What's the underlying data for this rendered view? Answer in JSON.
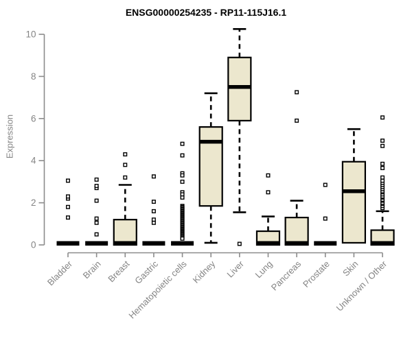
{
  "title": "ENSG00000254235 - RP11-115J16.1",
  "chart_data": {
    "type": "boxplot",
    "title": "ENSG00000254235 - RP11-115J16.1",
    "xlabel": "",
    "ylabel": "Expression",
    "ylim": [
      0,
      10.4
    ],
    "yticks": [
      0,
      2,
      4,
      6,
      8,
      10
    ],
    "grid": false,
    "legend": "none",
    "categories": [
      "Bladder",
      "Brain",
      "Breast",
      "Gastric",
      "Hematopoietic cells",
      "Kidney",
      "Liver",
      "Lung",
      "Pancreas",
      "Prostate",
      "Skin",
      "Unknown / Other"
    ],
    "series": [
      {
        "id": "bladder",
        "label": "Bladder",
        "low": 0,
        "q1": 0,
        "median": 0,
        "q3": 0,
        "high": 0,
        "outliers": [
          1.3,
          1.8,
          2.2,
          2.3,
          3.05
        ]
      },
      {
        "id": "brain",
        "label": "Brain",
        "low": 0,
        "q1": 0,
        "median": 0,
        "q3": 0,
        "high": 0,
        "outliers": [
          0.5,
          1.05,
          1.25,
          2.1,
          2.7,
          2.8,
          3.1
        ]
      },
      {
        "id": "breast",
        "label": "Breast",
        "low": 0,
        "q1": 0,
        "median": 0,
        "q3": 1.2,
        "high": 2.85,
        "outliers": [
          3.2,
          3.8,
          4.3
        ]
      },
      {
        "id": "gastric",
        "label": "Gastric",
        "low": 0,
        "q1": 0,
        "median": 0,
        "q3": 0,
        "high": 0,
        "outliers": [
          1.05,
          1.2,
          1.6,
          2.05,
          3.25
        ]
      },
      {
        "id": "hematopoietic-cells",
        "label": "Hematopoietic cells",
        "low": 0,
        "q1": 0,
        "median": 0,
        "q3": 0,
        "high": 0,
        "outliers": [
          4.8,
          4.25,
          3.4,
          3.3,
          3.0,
          2.5,
          2.4,
          2.25,
          1.85,
          1.8,
          1.75,
          1.7,
          1.65,
          1.6,
          1.55,
          1.5,
          1.45,
          1.4,
          1.35,
          1.3,
          1.25,
          1.2,
          1.15,
          1.1,
          1.05,
          1.0,
          0.95,
          0.9,
          0.85,
          0.8,
          0.75,
          0.7,
          0.65,
          0.6,
          0.55,
          0.5,
          0.45,
          0.4,
          0.35,
          0.3
        ]
      },
      {
        "id": "kidney",
        "label": "Kidney",
        "low": 0.1,
        "q1": 1.85,
        "median": 4.9,
        "q3": 5.6,
        "high": 7.2,
        "outliers": []
      },
      {
        "id": "liver",
        "label": "Liver",
        "low": 1.55,
        "q1": 5.9,
        "median": 7.5,
        "q3": 8.9,
        "high": 10.25,
        "outliers": [
          0.05
        ]
      },
      {
        "id": "lung",
        "label": "Lung",
        "low": 0,
        "q1": 0,
        "median": 0,
        "q3": 0.65,
        "high": 1.35,
        "outliers": [
          2.5,
          3.3
        ]
      },
      {
        "id": "pancreas",
        "label": "Pancreas",
        "low": 0,
        "q1": 0,
        "median": 0,
        "q3": 1.3,
        "high": 2.1,
        "outliers": [
          5.9,
          7.25
        ]
      },
      {
        "id": "prostate",
        "label": "Prostate",
        "low": 0,
        "q1": 0,
        "median": 0,
        "q3": 0,
        "high": 0,
        "outliers": [
          1.25,
          2.85
        ]
      },
      {
        "id": "skin",
        "label": "Skin",
        "low": 0.1,
        "q1": 0.1,
        "median": 2.55,
        "q3": 3.95,
        "high": 5.5,
        "outliers": []
      },
      {
        "id": "unknown-other",
        "label": "Unknown / Other",
        "low": 0,
        "q1": 0,
        "median": 0,
        "q3": 0.7,
        "high": 1.6,
        "outliers": [
          1.75,
          1.85,
          1.95,
          2.0,
          2.1,
          2.15,
          2.25,
          2.3,
          2.4,
          2.5,
          2.55,
          2.65,
          2.75,
          2.85,
          2.95,
          3.05,
          3.2,
          3.65,
          3.85,
          4.7,
          4.95,
          6.05
        ]
      }
    ],
    "colors": {
      "box_fill": "#ECE7CE",
      "box_stroke": "#000000",
      "median": "#000000",
      "whisker": "#000000",
      "outlier_fill": "#ffffff",
      "axis": "#8b8b8b",
      "text": "#848484",
      "title": "#000000",
      "background": "#ffffff"
    }
  }
}
